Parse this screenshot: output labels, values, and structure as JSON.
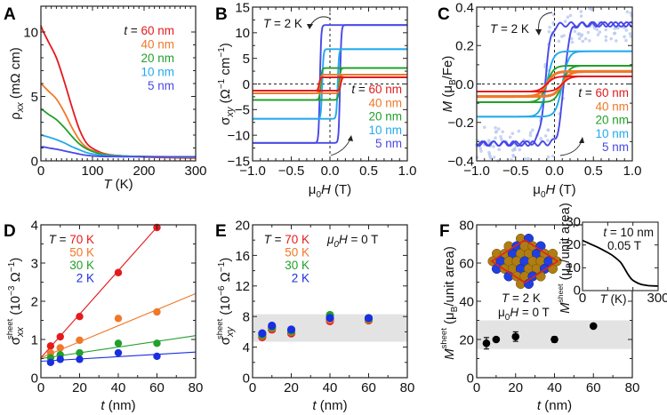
{
  "figure": {
    "colors": {
      "60nm": "#e41a1c",
      "40nm": "#f07828",
      "20nm": "#22a02a",
      "10nm": "#22aaee",
      "5nm": "#4848e8",
      "70K": "#e41a1c",
      "50K": "#f07828",
      "30K": "#22a02a",
      "2K": "#1a2ee0",
      "band": "#e3e3e3",
      "axis": "#222222"
    }
  },
  "chart_data": [
    {
      "panel": "A",
      "type": "line",
      "xlabel": "T (K)",
      "ylabel": "ρxx (mΩ cm)",
      "xlim": [
        0,
        300
      ],
      "ylim": [
        0,
        12
      ],
      "xticks": [
        0,
        100,
        200,
        300
      ],
      "yticks": [
        0,
        5,
        10
      ],
      "legend_prefix": "t =",
      "legend_position": "top-right",
      "series": [
        {
          "name": "60 nm",
          "color_key": "60nm",
          "x": [
            0,
            5,
            15,
            30,
            45,
            60,
            75,
            90,
            110,
            130,
            160,
            200,
            250,
            300
          ],
          "y": [
            10.5,
            10.0,
            9.2,
            8.0,
            6.2,
            4.2,
            2.4,
            1.3,
            0.75,
            0.5,
            0.38,
            0.3,
            0.25,
            0.22
          ]
        },
        {
          "name": "40 nm",
          "color_key": "40nm",
          "x": [
            0,
            5,
            15,
            30,
            45,
            60,
            75,
            90,
            110,
            130,
            160,
            200,
            250,
            300
          ],
          "y": [
            6.0,
            5.8,
            5.4,
            4.8,
            3.8,
            2.6,
            1.6,
            1.0,
            0.65,
            0.48,
            0.38,
            0.32,
            0.28,
            0.25
          ]
        },
        {
          "name": "20 nm",
          "color_key": "20nm",
          "x": [
            0,
            5,
            15,
            30,
            45,
            60,
            75,
            90,
            110,
            130,
            160,
            200,
            250,
            300
          ],
          "y": [
            4.0,
            3.9,
            3.6,
            3.2,
            2.6,
            1.9,
            1.3,
            0.9,
            0.6,
            0.45,
            0.38,
            0.34,
            0.3,
            0.28
          ]
        },
        {
          "name": "10 nm",
          "color_key": "10nm",
          "x": [
            0,
            5,
            15,
            30,
            45,
            60,
            75,
            90,
            110,
            130,
            160,
            200,
            250,
            300
          ],
          "y": [
            2.0,
            1.95,
            1.85,
            1.65,
            1.4,
            1.1,
            0.85,
            0.62,
            0.48,
            0.4,
            0.36,
            0.34,
            0.32,
            0.3
          ]
        },
        {
          "name": "5 nm",
          "color_key": "5nm",
          "x": [
            0,
            5,
            15,
            30,
            45,
            60,
            75,
            90,
            110,
            130,
            160,
            200,
            250,
            300
          ],
          "y": [
            1.1,
            1.08,
            1.0,
            0.9,
            0.78,
            0.65,
            0.52,
            0.42,
            0.36,
            0.33,
            0.32,
            0.32,
            0.32,
            0.32
          ]
        }
      ]
    },
    {
      "panel": "B",
      "type": "line",
      "xlabel": "μ0H (T)",
      "ylabel": "σxy (Ω⁻¹ cm⁻¹)",
      "xlim": [
        -1.0,
        1.0
      ],
      "ylim": [
        -15,
        15
      ],
      "xticks": [
        -1.0,
        -0.5,
        0.0,
        0.5,
        1.0
      ],
      "yticks": [
        -15,
        -10,
        -5,
        0,
        5,
        10,
        15
      ],
      "annotation": "T = 2 K",
      "legend_prefix": "t =",
      "legend_position": "bottom-right",
      "series": [
        {
          "name": "60 nm",
          "color_key": "60nm",
          "saturation": 1.3,
          "coercive_field": 0.14
        },
        {
          "name": "40 nm",
          "color_key": "40nm",
          "saturation": 1.8,
          "coercive_field": 0.13
        },
        {
          "name": "20 nm",
          "color_key": "20nm",
          "saturation": 3.1,
          "coercive_field": 0.12
        },
        {
          "name": "10 nm",
          "color_key": "10nm",
          "saturation": 6.8,
          "coercive_field": 0.1
        },
        {
          "name": "5 nm",
          "color_key": "5nm",
          "saturation": 11.5,
          "coercive_field": 0.13
        }
      ]
    },
    {
      "panel": "C",
      "type": "line",
      "xlabel": "μ0H (T)",
      "ylabel": "M (μB/Fe)",
      "xlim": [
        -1.0,
        1.0
      ],
      "ylim": [
        -0.4,
        0.4
      ],
      "xticks": [
        -1.0,
        -0.5,
        0.0,
        0.5,
        1.0
      ],
      "yticks": [
        -0.4,
        -0.2,
        0.0,
        0.2,
        0.4
      ],
      "annotation": "T = 2 K",
      "legend_prefix": "t =",
      "legend_position": "bottom-right",
      "series": [
        {
          "name": "60 nm",
          "color_key": "60nm",
          "saturation": 0.04,
          "coercive_field": 0.1
        },
        {
          "name": "40 nm",
          "color_key": "40nm",
          "saturation": 0.065,
          "coercive_field": 0.1
        },
        {
          "name": "20 nm",
          "color_key": "20nm",
          "saturation": 0.095,
          "coercive_field": 0.1
        },
        {
          "name": "10 nm",
          "color_key": "10nm",
          "saturation": 0.17,
          "coercive_field": 0.1
        },
        {
          "name": "5 nm",
          "color_key": "5nm",
          "saturation": 0.31,
          "coercive_field": 0.12
        }
      ]
    },
    {
      "panel": "D",
      "type": "scatter",
      "xlabel": "t (nm)",
      "ylabel": "σxx sheet (10⁻³ Ω⁻¹)",
      "xlim": [
        0,
        80
      ],
      "ylim": [
        0,
        4
      ],
      "xticks": [
        0,
        20,
        40,
        60,
        80
      ],
      "yticks": [
        0,
        1,
        2,
        3,
        4
      ],
      "legend_prefix": "T =",
      "legend_position": "top-left",
      "x": [
        5,
        10,
        20,
        40,
        60
      ],
      "series": [
        {
          "name": "70 K",
          "color_key": "70K",
          "values": [
            0.83,
            1.07,
            1.6,
            2.75,
            3.93
          ],
          "fit": [
            0.52,
            0.057
          ]
        },
        {
          "name": "50 K",
          "color_key": "50K",
          "values": [
            0.65,
            0.78,
            0.98,
            1.55,
            1.72
          ],
          "fit": [
            0.52,
            0.021
          ]
        },
        {
          "name": "30 K",
          "color_key": "30K",
          "values": [
            0.52,
            0.6,
            0.65,
            0.9,
            0.9
          ],
          "fit": [
            0.5,
            0.0075
          ]
        },
        {
          "name": "2 K",
          "color_key": "2K",
          "values": [
            0.4,
            0.48,
            0.48,
            0.65,
            0.56
          ],
          "fit": [
            0.43,
            0.003
          ]
        }
      ]
    },
    {
      "panel": "E",
      "type": "scatter",
      "xlabel": "t (nm)",
      "ylabel": "σxy sheet (10⁻⁶ Ω⁻¹)",
      "xlim": [
        0,
        80
      ],
      "ylim": [
        0,
        20
      ],
      "xticks": [
        0,
        20,
        40,
        60,
        80
      ],
      "yticks": [
        0,
        4,
        8,
        12,
        16,
        20
      ],
      "annotation": "μ0H = 0 T",
      "legend_prefix": "T =",
      "legend_position": "top-left",
      "band": [
        4.7,
        8.3
      ],
      "x": [
        5,
        10,
        20,
        40,
        60
      ],
      "series": [
        {
          "name": "70 K",
          "color_key": "70K",
          "values": [
            5.3,
            6.3,
            5.8,
            7.4,
            7.5
          ]
        },
        {
          "name": "50 K",
          "color_key": "50K",
          "values": [
            5.5,
            6.5,
            6.0,
            7.6,
            7.6
          ]
        },
        {
          "name": "30 K",
          "color_key": "30K",
          "values": [
            5.6,
            6.6,
            6.1,
            8.2,
            7.7
          ]
        },
        {
          "name": "2 K",
          "color_key": "2K",
          "values": [
            5.8,
            6.8,
            6.3,
            7.8,
            7.8
          ]
        }
      ]
    },
    {
      "panel": "F",
      "type": "scatter",
      "xlabel": "t (nm)",
      "ylabel": "M sheet (μB/unit area)",
      "xlim": [
        0,
        80
      ],
      "ylim": [
        0,
        80
      ],
      "xticks": [
        0,
        20,
        40,
        60,
        80
      ],
      "yticks": [
        0,
        20,
        40,
        60,
        80
      ],
      "annotation_lines": [
        "T = 2 K",
        "μ0H = 0 T"
      ],
      "band": [
        15,
        30
      ],
      "x": [
        5,
        10,
        20,
        40,
        60
      ],
      "values": [
        18,
        20,
        21.5,
        20,
        27
      ],
      "errors": [
        3,
        1,
        2.5,
        1.5,
        1
      ],
      "inset": {
        "type": "line",
        "xlabel": "T (K)",
        "ylabel": "M sheet (μB/unit area)",
        "xlim": [
          0,
          300
        ],
        "ylim": [
          0,
          30
        ],
        "xticks": [
          0,
          300
        ],
        "yticks": [
          0,
          10,
          20,
          30
        ],
        "annotation_lines": [
          "t = 10 nm",
          "0.05 T"
        ],
        "x": [
          0,
          30,
          60,
          90,
          120,
          150,
          165,
          180,
          195,
          210,
          230,
          260,
          300
        ],
        "y": [
          22,
          20.5,
          19,
          17.3,
          15.3,
          12.5,
          10,
          7.2,
          5,
          3.8,
          2.8,
          2.2,
          2.0
        ]
      }
    }
  ],
  "labels": {
    "panels": [
      "A",
      "B",
      "C",
      "D",
      "E",
      "F"
    ],
    "sheet": "sheet"
  }
}
